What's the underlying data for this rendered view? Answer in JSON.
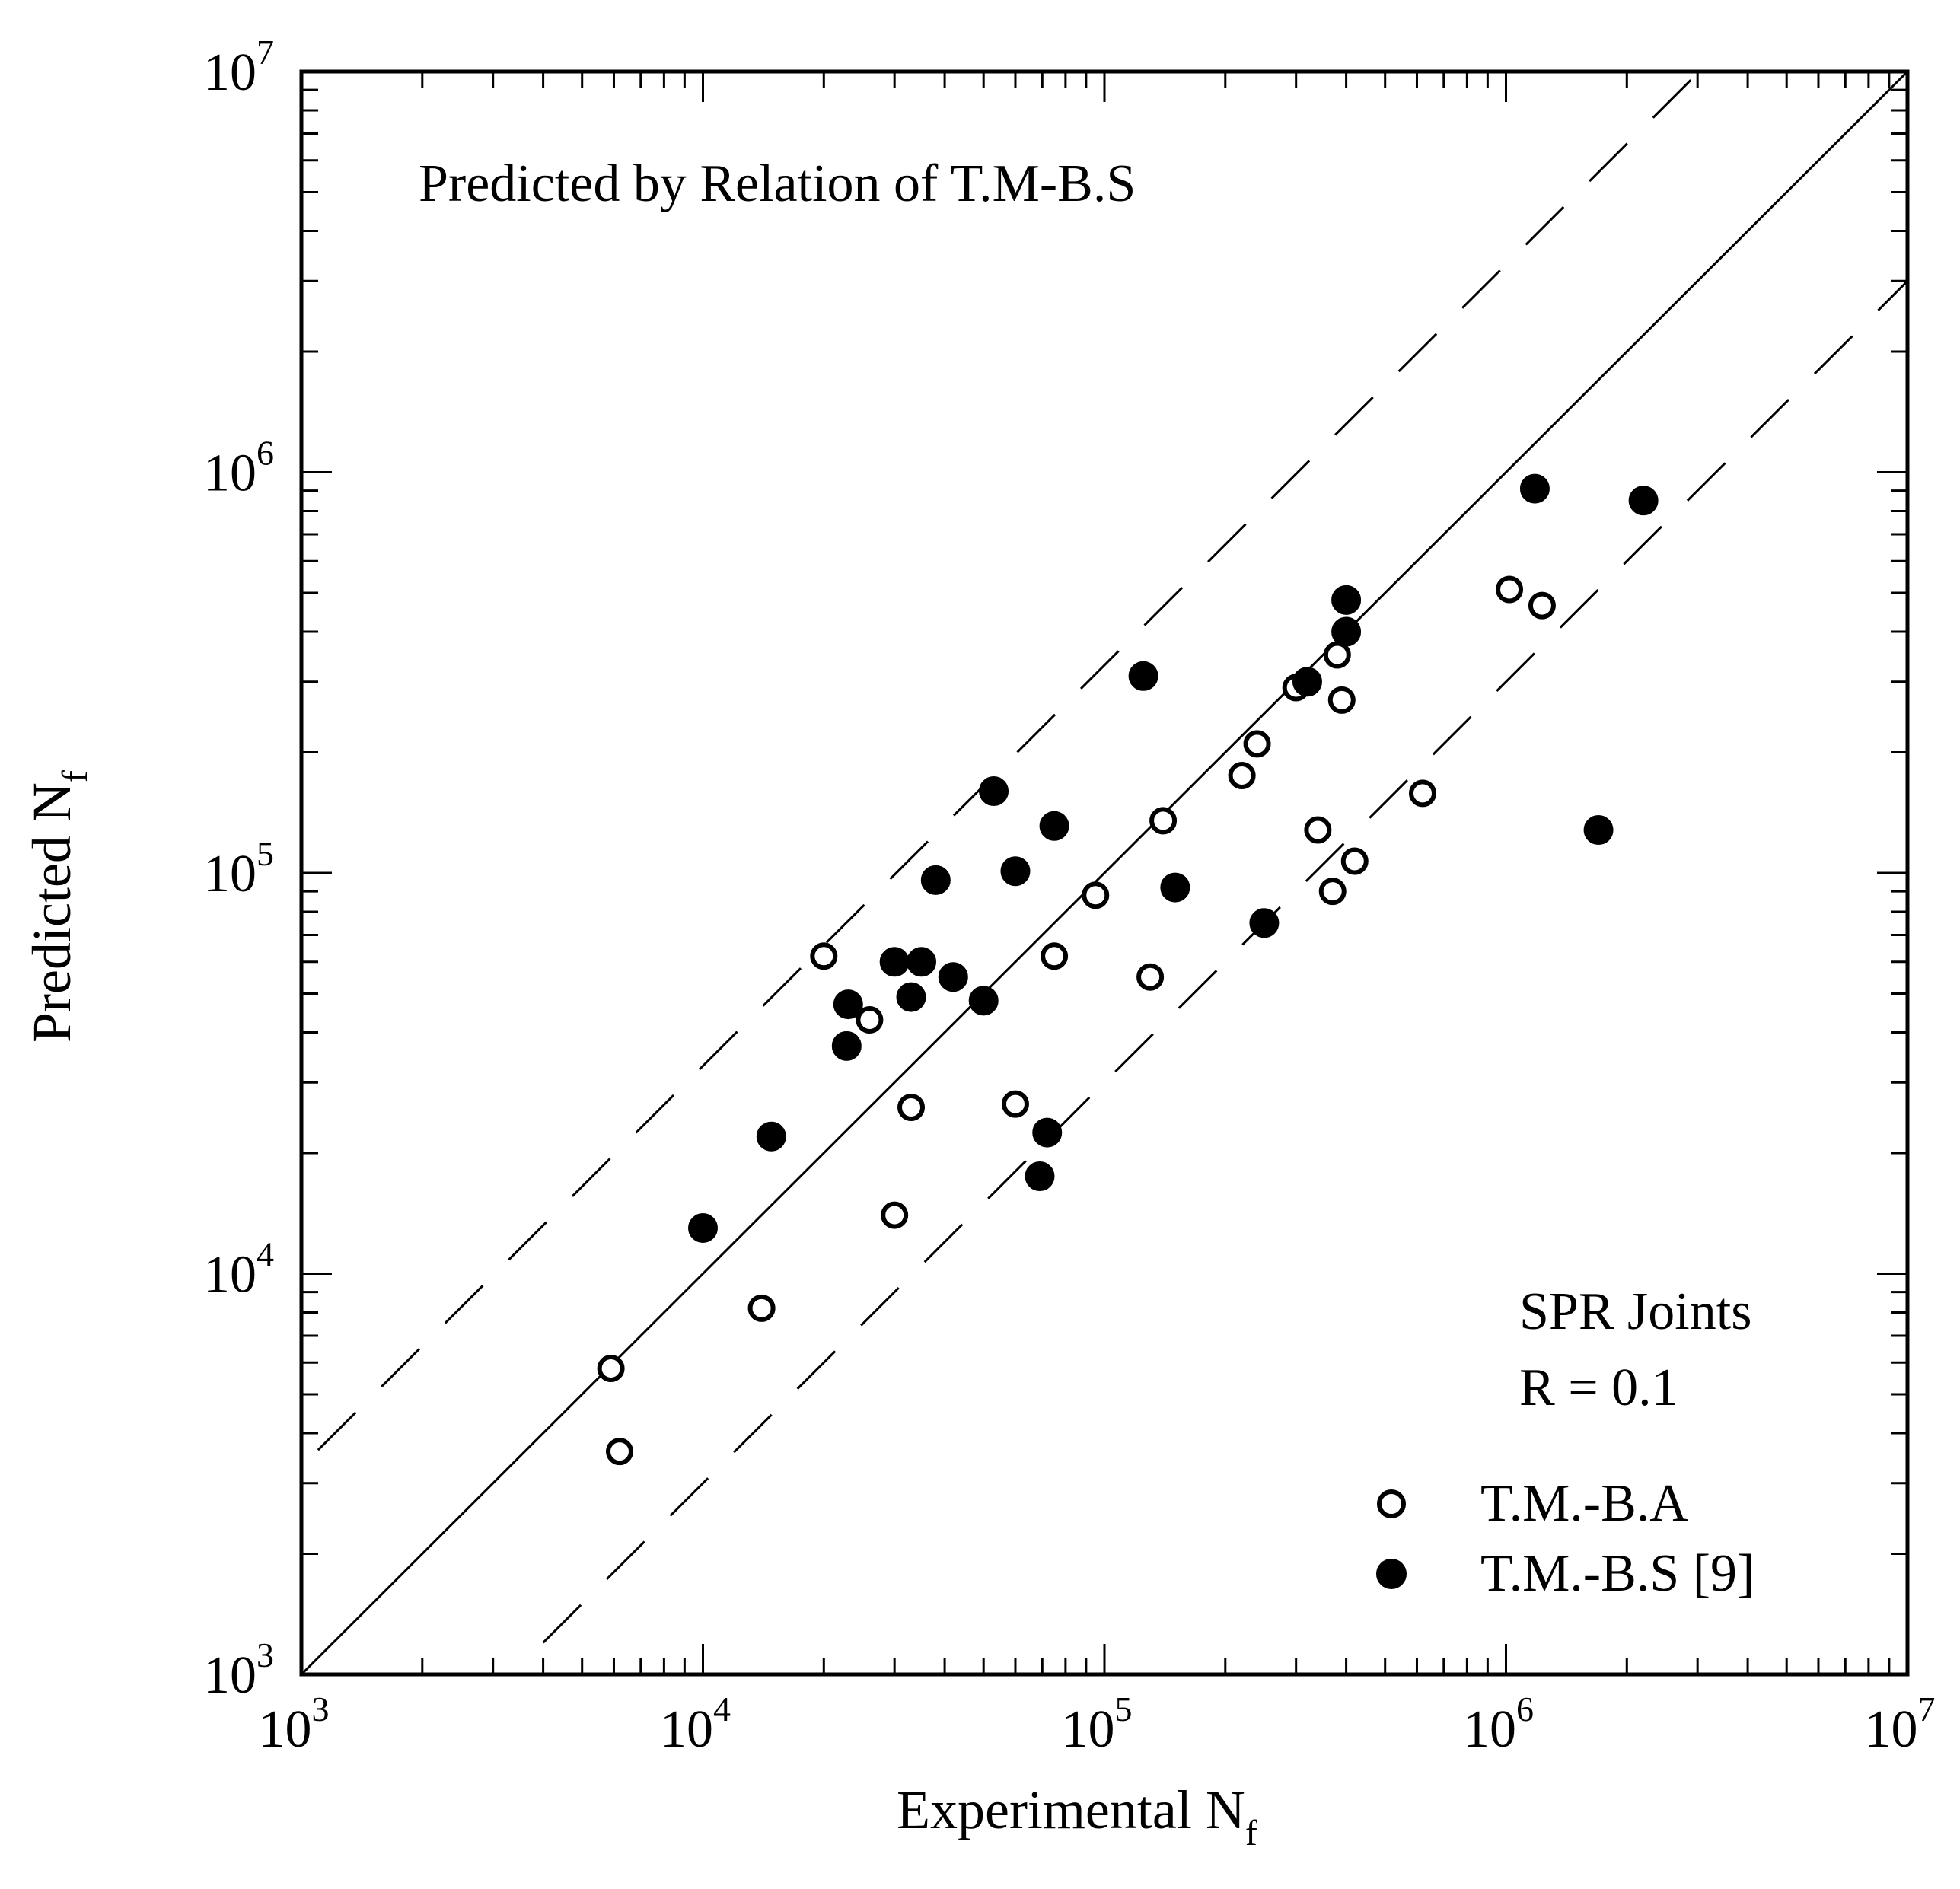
{
  "chart_data": {
    "type": "scatter",
    "title": "",
    "xlabel": "Experimental N",
    "xlabel_sub": "f",
    "ylabel": "Predicted N",
    "ylabel_sub": "f",
    "xscale": "log",
    "yscale": "log",
    "xlim": [
      1000,
      10000000
    ],
    "ylim": [
      1000,
      10000000
    ],
    "x_ticks": [
      {
        "base": "10",
        "exp": "3",
        "value": 1000
      },
      {
        "base": "10",
        "exp": "4",
        "value": 10000
      },
      {
        "base": "10",
        "exp": "5",
        "value": 100000
      },
      {
        "base": "10",
        "exp": "6",
        "value": 1000000
      },
      {
        "base": "10",
        "exp": "7",
        "value": 10000000
      }
    ],
    "y_ticks": [
      {
        "base": "10",
        "exp": "3",
        "value": 1000
      },
      {
        "base": "10",
        "exp": "4",
        "value": 10000
      },
      {
        "base": "10",
        "exp": "5",
        "value": 100000
      },
      {
        "base": "10",
        "exp": "6",
        "value": 1000000
      },
      {
        "base": "10",
        "exp": "7",
        "value": 10000000
      }
    ],
    "grid": false,
    "annotations": {
      "top_left": "Predicted by Relation of T.M-B.S",
      "bottom_right_line1": "SPR Joints",
      "bottom_right_line2": "R = 0.1"
    },
    "reference_lines": [
      {
        "name": "1:1",
        "factor": 1,
        "style": "solid"
      },
      {
        "name": "factor 3 upper",
        "factor": 3.3,
        "style": "dashed"
      },
      {
        "name": "factor 3 lower",
        "factor": 0.3,
        "style": "dashed"
      }
    ],
    "legend_position": "bottom-right",
    "series": [
      {
        "name": "T.M.-B.A",
        "marker": "open-circle",
        "points": [
          [
            5900,
            5800
          ],
          [
            6200,
            3600
          ],
          [
            14000,
            8200
          ],
          [
            20000,
            62000
          ],
          [
            26000,
            43000
          ],
          [
            33000,
            26000
          ],
          [
            30000,
            14000
          ],
          [
            60000,
            26500
          ],
          [
            75000,
            62000
          ],
          [
            95000,
            88000
          ],
          [
            130000,
            55000
          ],
          [
            140000,
            135000
          ],
          [
            220000,
            175000
          ],
          [
            240000,
            210000
          ],
          [
            300000,
            290000
          ],
          [
            380000,
            350000
          ],
          [
            390000,
            270000
          ],
          [
            340000,
            128000
          ],
          [
            370000,
            90000
          ],
          [
            420000,
            107000
          ],
          [
            620000,
            158000
          ],
          [
            1020000,
            510000
          ],
          [
            1230000,
            465000
          ]
        ]
      },
      {
        "name": "T.M.-B.S [9]",
        "marker": "filled-circle",
        "points": [
          [
            10000,
            13000
          ],
          [
            14800,
            22000
          ],
          [
            22800,
            37000
          ],
          [
            23000,
            47000
          ],
          [
            30000,
            60000
          ],
          [
            33000,
            49000
          ],
          [
            35000,
            60000
          ],
          [
            42000,
            55000
          ],
          [
            38000,
            96000
          ],
          [
            50000,
            48000
          ],
          [
            53000,
            160000
          ],
          [
            60000,
            101000
          ],
          [
            75000,
            131000
          ],
          [
            72000,
            22500
          ],
          [
            69000,
            17500
          ],
          [
            125000,
            310000
          ],
          [
            150000,
            92000
          ],
          [
            250000,
            75000
          ],
          [
            320000,
            300000
          ],
          [
            400000,
            400000
          ],
          [
            400000,
            480000
          ],
          [
            1180000,
            910000
          ],
          [
            2200000,
            850000
          ],
          [
            1700000,
            128000
          ]
        ]
      }
    ]
  }
}
